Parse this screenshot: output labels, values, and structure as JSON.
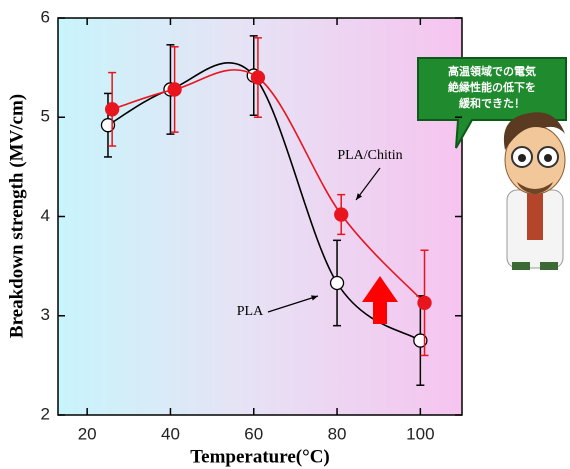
{
  "chart_data": {
    "type": "line",
    "x_label": "Temperature(°C)",
    "y_label": "Breakdown strength (MV/cm)",
    "xlim": [
      13,
      110
    ],
    "ylim": [
      2,
      6
    ],
    "xticks": [
      20,
      40,
      60,
      80,
      100
    ],
    "yticks": [
      2,
      3,
      4,
      5,
      6
    ],
    "series": [
      {
        "name": "PLA",
        "color": "#000000",
        "marker_fill": "#ffffff",
        "error_color": "#000000",
        "x": [
          25,
          40,
          60,
          80,
          100
        ],
        "values": [
          4.92,
          5.28,
          5.42,
          3.33,
          2.75
        ],
        "errors": [
          0.32,
          0.45,
          0.4,
          0.43,
          0.45
        ]
      },
      {
        "name": "PLA/Chitin",
        "color": "#e8141e",
        "marker_fill": "#e8141e",
        "error_color": "#e8141e",
        "x": [
          26,
          41,
          61,
          81,
          101
        ],
        "values": [
          5.08,
          5.28,
          5.4,
          4.02,
          3.13
        ],
        "errors": [
          0.37,
          0.43,
          0.4,
          0.2,
          0.53
        ]
      }
    ],
    "callout": [
      "高温領域での電気",
      "絶縁性能の低下を",
      "緩和できた！"
    ]
  }
}
